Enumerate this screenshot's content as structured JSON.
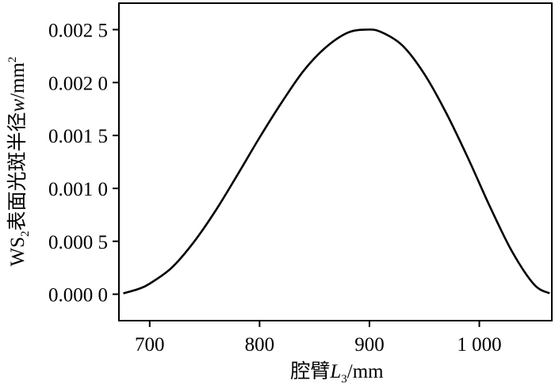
{
  "chart_data": {
    "type": "line",
    "title": "",
    "xlabel": "腔臂L3/mm",
    "xlabel_parts": {
      "prefix": "腔臂",
      "var": "L",
      "sub": "3",
      "unit": "/mm"
    },
    "ylabel": "WS2表面光斑半径w/mm2",
    "ylabel_parts": {
      "pre": "WS",
      "sub": "2",
      "mid": "表面光斑半径",
      "var": "w",
      "unit": "/mm",
      "sup": "2"
    },
    "xlim": [
      672,
      1066
    ],
    "ylim": [
      -0.00025,
      0.00275
    ],
    "xticks": [
      700,
      800,
      900,
      1000
    ],
    "xtick_labels": [
      "700",
      "800",
      "900",
      "1 000"
    ],
    "yticks": [
      0,
      0.0005,
      0.001,
      0.0015,
      0.002,
      0.0025
    ],
    "ytick_labels": [
      "0.000 0",
      "0.000 5",
      "0.001 0",
      "0.001 5",
      "0.002 0",
      "0.002 5"
    ],
    "grid": false,
    "legend": "none",
    "line_color": "#000000",
    "series": [
      {
        "x": [
          676,
          690,
          700,
          720,
          740,
          760,
          780,
          800,
          820,
          840,
          860,
          880,
          897,
          910,
          930,
          950,
          970,
          990,
          1010,
          1030,
          1050,
          1064
        ],
        "values": [
          8e-06,
          5e-05,
          0.0001,
          0.00025,
          0.00049,
          0.00079,
          0.00113,
          0.00148,
          0.00181,
          0.00211,
          0.00233,
          0.00247,
          0.0025,
          0.00248,
          0.00235,
          0.00208,
          0.00171,
          0.00128,
          0.00082,
          0.0004,
          9e-05,
          8e-06
        ]
      }
    ]
  }
}
